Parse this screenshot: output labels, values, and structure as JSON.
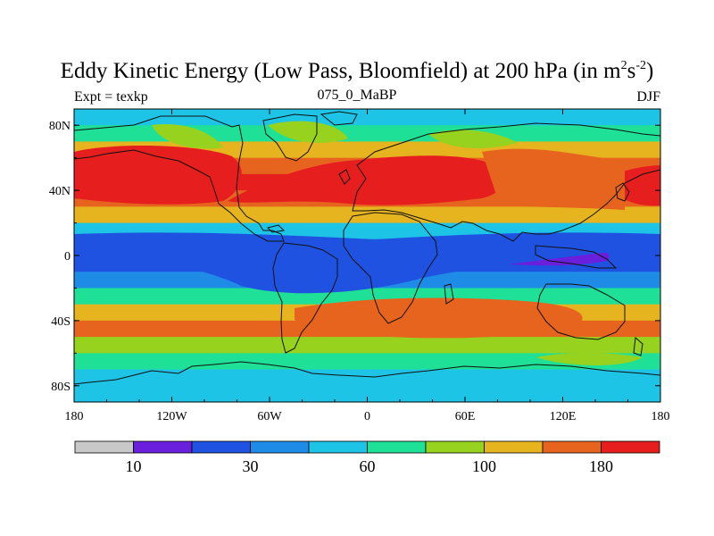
{
  "title": {
    "text": "Eddy Kinetic Energy (Low Pass, Bloomfield) at 200 hPa (in m",
    "sup1": "2",
    "mid": "s",
    "sup2": "-2",
    "end": ")"
  },
  "subtitle_left": "Expt = texkp",
  "subtitle_center": "075_0_MaBP",
  "subtitle_right": "DJF",
  "chart_data": {
    "type": "heatmap",
    "projection": "cylindrical-equidistant",
    "lon_range": [
      -180,
      180
    ],
    "lat_range": [
      -90,
      90
    ],
    "x_ticks": [
      {
        "value": -180,
        "label": "180"
      },
      {
        "value": -120,
        "label": "120W"
      },
      {
        "value": -60,
        "label": "60W"
      },
      {
        "value": 0,
        "label": "0"
      },
      {
        "value": 60,
        "label": "60E"
      },
      {
        "value": 120,
        "label": "120E"
      },
      {
        "value": 180,
        "label": "180"
      }
    ],
    "y_ticks": [
      {
        "value": 80,
        "label": "80N"
      },
      {
        "value": 40,
        "label": "40N"
      },
      {
        "value": 0,
        "label": "0"
      },
      {
        "value": -40,
        "label": "40S"
      },
      {
        "value": -80,
        "label": "80S"
      }
    ],
    "colorbar": {
      "levels": [
        5,
        10,
        20,
        30,
        45,
        60,
        80,
        100,
        140,
        180
      ],
      "colors": [
        "#c8c8c8",
        "#6a1fdc",
        "#1f52e0",
        "#1e8ce6",
        "#1ec4e6",
        "#1ee096",
        "#96d21e",
        "#e6b41e",
        "#e6641e",
        "#e61e1e"
      ],
      "labels": [
        {
          "value": 10,
          "label": "10"
        },
        {
          "value": 30,
          "label": "30"
        },
        {
          "value": 60,
          "label": "60"
        },
        {
          "value": 100,
          "label": "100"
        },
        {
          "value": 180,
          "label": "180"
        }
      ]
    },
    "field_rows": [
      {
        "lat": 85,
        "value": 58
      },
      {
        "lat": 75,
        "value": 75
      },
      {
        "lat": 65,
        "value": 100
      },
      {
        "lat": 55,
        "value": 150
      },
      {
        "lat": 45,
        "value": 185
      },
      {
        "lat": 35,
        "value": 160
      },
      {
        "lat": 25,
        "value": 110
      },
      {
        "lat": 15,
        "value": 55
      },
      {
        "lat": 5,
        "value": 25
      },
      {
        "lat": -5,
        "value": 22
      },
      {
        "lat": -15,
        "value": 40
      },
      {
        "lat": -25,
        "value": 75
      },
      {
        "lat": -35,
        "value": 115
      },
      {
        "lat": -45,
        "value": 140
      },
      {
        "lat": -55,
        "value": 95
      },
      {
        "lat": -65,
        "value": 70
      },
      {
        "lat": -75,
        "value": 50
      },
      {
        "lat": -85,
        "value": 45
      }
    ]
  }
}
